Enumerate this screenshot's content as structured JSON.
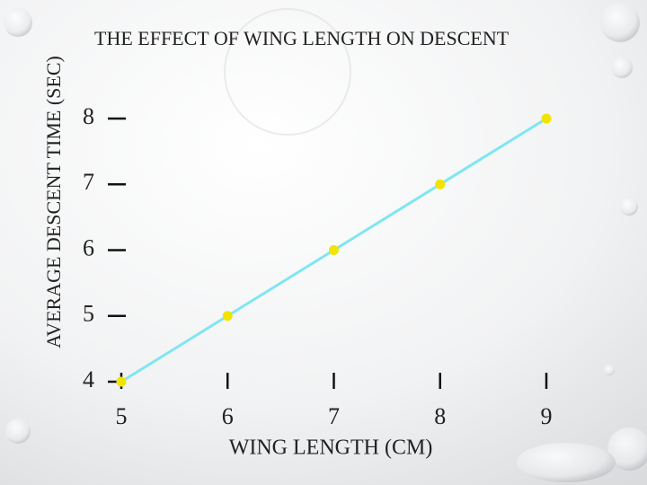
{
  "chart_data": {
    "type": "scatter",
    "title": "THE EFFECT OF WING LENGTH ON DESCENT",
    "x_label": "WING LENGTH (CM)",
    "y_label": "AVERAGE DESCENT TIME (SEC)",
    "x": [
      5,
      6,
      7,
      8,
      9
    ],
    "values": [
      4,
      5,
      6,
      7,
      8
    ],
    "color": "#f0e400",
    "trend_line": {
      "color": "#7fe6f2",
      "x": [
        5,
        9
      ],
      "values": [
        4,
        8
      ]
    },
    "xlim": [
      5,
      9
    ],
    "xticks": [
      5,
      6,
      7,
      8,
      9
    ],
    "ylim": [
      4,
      8
    ],
    "yticks": [
      4,
      5,
      6,
      7,
      8
    ]
  }
}
